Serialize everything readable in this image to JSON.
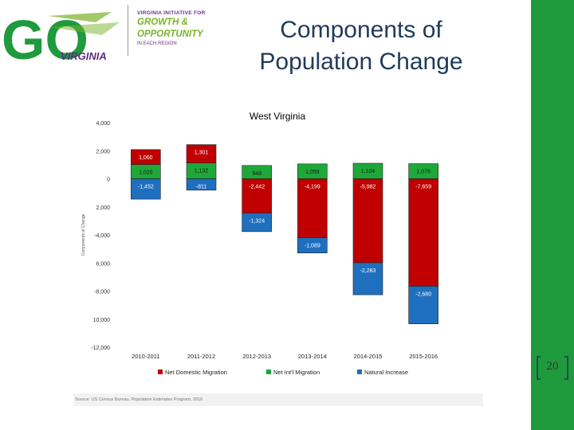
{
  "slide": {
    "title_line1": "Components of",
    "title_line2": "Population Change",
    "page_number": "20"
  },
  "logo": {
    "mark": "GO",
    "state": "VIRGINIA",
    "line1": "VIRGINIA INITIATIVE FOR",
    "line2": "GROWTH &",
    "line3": "OPPORTUNITY",
    "line4": "IN EACH REGION"
  },
  "source_note": "Source: US Census Bureau, Population Estimates Program, 2016",
  "colors": {
    "domestic": "#c00000",
    "international": "#1fa83a",
    "natural": "#1f6fbf",
    "sidebar": "#1f9a3c"
  },
  "chart_data": {
    "type": "bar",
    "stacked": true,
    "title": "West Virginia",
    "ylabel": "Components of Change",
    "ylim": [
      -12000,
      4000
    ],
    "yticks": [
      4000,
      2000,
      0,
      -2000,
      -4000,
      -6000,
      -8000,
      -10000,
      -12000
    ],
    "ytick_labels": [
      "4,000",
      "2,000",
      "0",
      "2,000",
      "-4,000",
      "6,000",
      "-8,000",
      "10,000",
      "-12,000"
    ],
    "categories": [
      "2010-2011",
      "2011-2012",
      "2012-2013",
      "2013-2014",
      "2014-2015",
      "2015-2016"
    ],
    "series": [
      {
        "name": "Net Domestic Migration",
        "key": "domestic",
        "values": [
          1060,
          1301,
          -2442,
          -4199,
          -5982,
          -7659
        ],
        "labels": [
          "1,060",
          "1,301",
          "-2,442",
          "-4,199",
          "-5,982",
          "-7,659"
        ]
      },
      {
        "name": "Net Int'l Migration",
        "key": "international",
        "values": [
          1020,
          1132,
          948,
          1059,
          1104,
          1076
        ],
        "labels": [
          "1,020",
          "1,132",
          "948",
          "1,059",
          "1,104",
          "1,076"
        ]
      },
      {
        "name": "Natural Increase",
        "key": "natural",
        "values": [
          -1452,
          -811,
          -1324,
          -1089,
          -2283,
          -2680
        ],
        "labels": [
          "-1,452",
          "-811",
          "-1,324",
          "-1,089",
          "-2,283",
          "-2,680"
        ]
      }
    ],
    "legend": [
      "Net Domestic Migration",
      "Net Int'l Migration",
      "Natural Increase"
    ],
    "legend_position": "bottom"
  }
}
